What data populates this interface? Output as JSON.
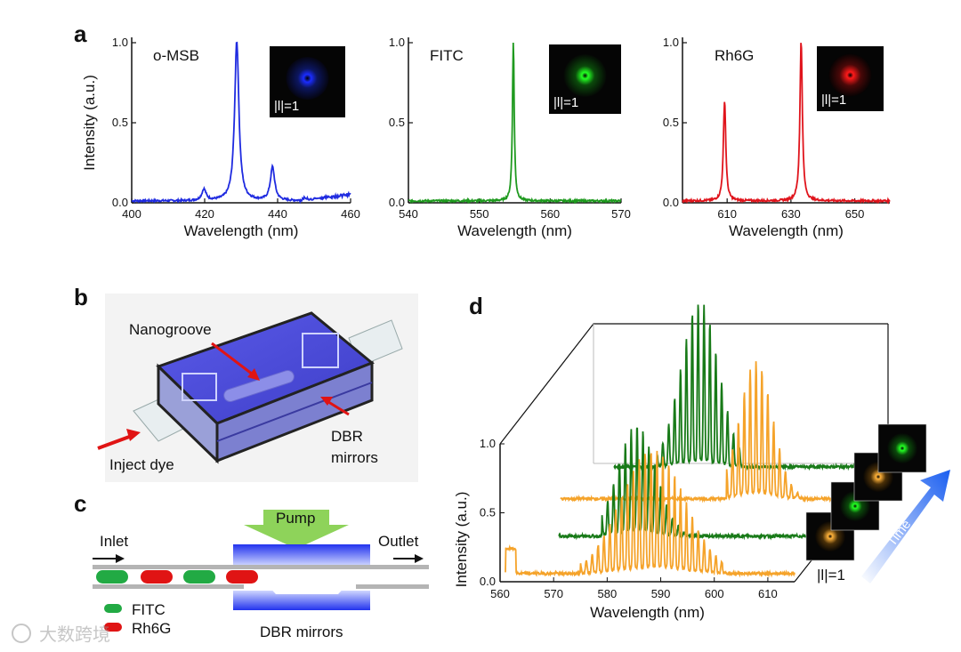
{
  "panel_labels": {
    "a": "a",
    "b": "b",
    "c": "c",
    "d": "d"
  },
  "colors": {
    "blue": "#1f2be0",
    "green": "#1f9a1f",
    "red": "#e0141c",
    "orange": "#f5a32a",
    "dark_green": "#187a18"
  },
  "chart_data": [
    {
      "type": "line",
      "title": "o-MSB",
      "xlabel": "Wavelength (nm)",
      "ylabel": "Intensity (a.u.)",
      "xlim": [
        400,
        460
      ],
      "ylim": [
        0,
        1.0
      ],
      "xticks": [
        "400",
        "420",
        "440",
        "460"
      ],
      "yticks": [
        "0.0",
        "0.5",
        "1.0"
      ],
      "color": "#1f2be0",
      "peaks": [
        [
          419.8,
          0.07
        ],
        [
          428.8,
          1.0
        ],
        [
          438.6,
          0.21
        ],
        [
          447.5,
          0.01
        ]
      ],
      "baseline_rise": {
        "start": 446,
        "end": 460,
        "level": 0.04
      },
      "inset_label": "|l|=1"
    },
    {
      "type": "line",
      "title": "FITC",
      "xlabel": "Wavelength (nm)",
      "xlim": [
        540,
        570
      ],
      "ylim": [
        0,
        1.0
      ],
      "xticks": [
        "540",
        "550",
        "560",
        "570"
      ],
      "yticks": [
        "0.0",
        "0.5",
        "1.0"
      ],
      "color": "#1f9a1f",
      "peaks": [
        [
          554.8,
          1.0
        ]
      ],
      "inset_label": "|l|=1"
    },
    {
      "type": "line",
      "title": "Rh6G",
      "xlabel": "Wavelength (nm)",
      "xlim": [
        596,
        661
      ],
      "ylim": [
        0,
        1.0
      ],
      "xticks": [
        "610",
        "630",
        "650"
      ],
      "yticks": [
        "0.0",
        "0.5",
        "1.0"
      ],
      "color": "#e0141c",
      "peaks": [
        [
          609.2,
          0.63
        ],
        [
          633.2,
          1.0
        ]
      ],
      "inset_label": "|l|=1"
    },
    {
      "type": "line",
      "title": "",
      "xlabel": "Wavelength (nm)",
      "ylabel": "Intensity (a.u.)",
      "xlim": [
        560,
        615
      ],
      "ylim": [
        0,
        1.0
      ],
      "xticks": [
        "560",
        "570",
        "580",
        "590",
        "600",
        "610"
      ],
      "yticks": [
        "0.0",
        "0.5",
        "1.0"
      ],
      "series": [
        {
          "name": "front orange",
          "color": "#f5a32a",
          "combs": [
            {
              "start": 575,
              "end": 602,
              "spacing": 1.1,
              "center": 588.5,
              "height": 0.85
            }
          ]
        },
        {
          "name": "front green",
          "color": "#187a18",
          "combs": [
            {
              "start": 574,
              "end": 590,
              "spacing": 1.1,
              "center": 580.5,
              "height": 0.75
            }
          ]
        },
        {
          "name": "back orange",
          "color": "#f5a32a",
          "combs": [
            {
              "start": 592,
              "end": 606,
              "spacing": 1.1,
              "center": 597.5,
              "height": 0.95
            }
          ]
        },
        {
          "name": "back green",
          "color": "#187a18",
          "combs": [
            {
              "start": 574,
              "end": 590,
              "spacing": 1.1,
              "center": 582,
              "height": 1.15
            }
          ]
        }
      ],
      "inset_label": "|l|=1",
      "time_label": "Time"
    }
  ],
  "panel_b": {
    "nanogroove": "Nanogroove",
    "inject": "Inject dye",
    "dbr_line1": "DBR",
    "dbr_line2": "mirrors"
  },
  "panel_c": {
    "pump": "Pump",
    "inlet": "Inlet",
    "outlet": "Outlet",
    "legend_fitc": "FITC",
    "legend_rh6g": "Rh6G",
    "dbr": "DBR mirrors"
  },
  "watermark": "大数跨境"
}
